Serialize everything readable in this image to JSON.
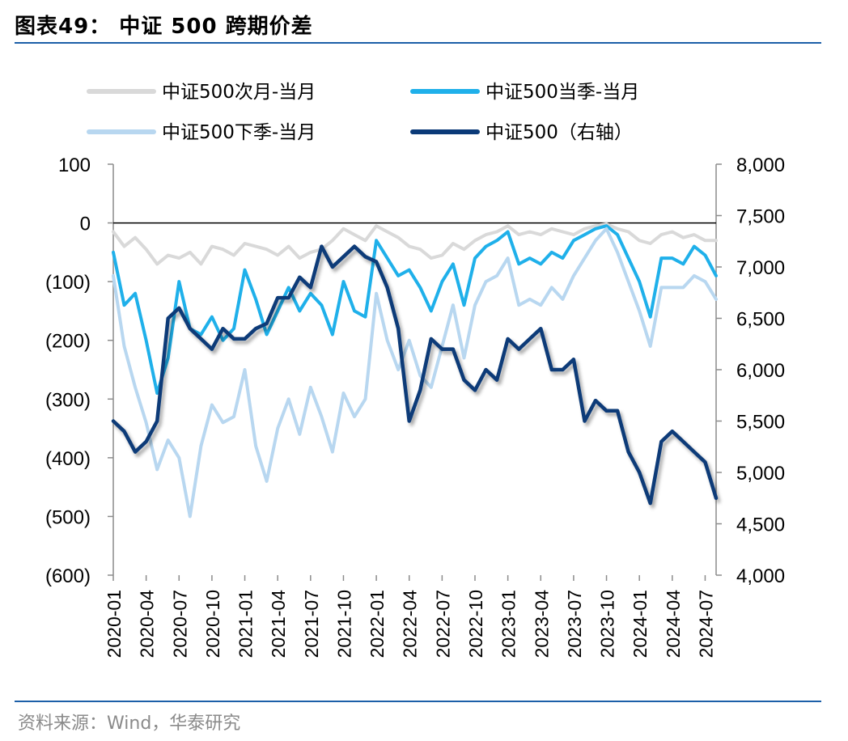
{
  "header": {
    "title": "图表49： 中证 500 跨期价差"
  },
  "footer": {
    "source": "资料来源：Wind，华泰研究"
  },
  "colors": {
    "next_month": "#d9d9d9",
    "current_quarter": "#1fb0ea",
    "next_quarter": "#b8d7f0",
    "index": "#0b3a78",
    "rule": "#1c5fa8"
  },
  "chart_data": {
    "type": "line",
    "legend": [
      {
        "label": "中证500次月-当月",
        "series": "next_month"
      },
      {
        "label": "中证500当季-当月",
        "series": "current_quarter"
      },
      {
        "label": "中证500下季-当月",
        "series": "next_quarter"
      },
      {
        "label": "中证500（右轴）",
        "series": "index"
      }
    ],
    "legend_position": "top",
    "x_ticks": [
      "2020-01",
      "2020-04",
      "2020-07",
      "2020-10",
      "2021-01",
      "2021-04",
      "2021-07",
      "2021-10",
      "2022-01",
      "2022-04",
      "2022-07",
      "2022-10",
      "2023-01",
      "2023-04",
      "2023-07",
      "2023-10",
      "2024-01",
      "2024-04",
      "2024-07"
    ],
    "x_range": [
      "2020-01",
      "2024-08"
    ],
    "y_left": {
      "ticks": [
        "100",
        "0",
        "(100)",
        "(200)",
        "(300)",
        "(400)",
        "(500)",
        "(600)"
      ],
      "range": [
        -600,
        100
      ]
    },
    "y_right": {
      "ticks": [
        "8,000",
        "7,500",
        "7,000",
        "6,500",
        "6,000",
        "5,500",
        "5,000",
        "4,500",
        "4,000"
      ],
      "range": [
        4000,
        8000
      ]
    },
    "grid": false,
    "series": [
      {
        "key": "next_month",
        "name": "中证500次月-当月",
        "axis": "left",
        "x": [
          "2020-01",
          "2020-02",
          "2020-03",
          "2020-04",
          "2020-05",
          "2020-06",
          "2020-07",
          "2020-08",
          "2020-09",
          "2020-10",
          "2020-11",
          "2020-12",
          "2021-01",
          "2021-02",
          "2021-03",
          "2021-04",
          "2021-05",
          "2021-06",
          "2021-07",
          "2021-08",
          "2021-09",
          "2021-10",
          "2021-11",
          "2021-12",
          "2022-01",
          "2022-02",
          "2022-03",
          "2022-04",
          "2022-05",
          "2022-06",
          "2022-07",
          "2022-08",
          "2022-09",
          "2022-10",
          "2022-11",
          "2022-12",
          "2023-01",
          "2023-02",
          "2023-03",
          "2023-04",
          "2023-05",
          "2023-06",
          "2023-07",
          "2023-08",
          "2023-09",
          "2023-10",
          "2023-11",
          "2023-12",
          "2024-01",
          "2024-02",
          "2024-03",
          "2024-04",
          "2024-05",
          "2024-06",
          "2024-07",
          "2024-08"
        ],
        "values": [
          -15,
          -40,
          -25,
          -45,
          -70,
          -55,
          -60,
          -50,
          -70,
          -40,
          -45,
          -55,
          -35,
          -40,
          -45,
          -55,
          -40,
          -60,
          -50,
          -45,
          -30,
          -10,
          -20,
          -30,
          -5,
          -15,
          -25,
          -40,
          -45,
          -60,
          -55,
          -35,
          -45,
          -30,
          -20,
          -15,
          -5,
          -20,
          -15,
          -20,
          -10,
          -15,
          -20,
          -10,
          -5,
          -2,
          -10,
          -15,
          -30,
          -35,
          -20,
          -15,
          -25,
          -20,
          -30,
          -30
        ]
      },
      {
        "key": "current_quarter",
        "name": "中证500当季-当月",
        "axis": "left",
        "x": [
          "2020-01",
          "2020-02",
          "2020-03",
          "2020-04",
          "2020-05",
          "2020-06",
          "2020-07",
          "2020-08",
          "2020-09",
          "2020-10",
          "2020-11",
          "2020-12",
          "2021-01",
          "2021-02",
          "2021-03",
          "2021-04",
          "2021-05",
          "2021-06",
          "2021-07",
          "2021-08",
          "2021-09",
          "2021-10",
          "2021-11",
          "2021-12",
          "2022-01",
          "2022-02",
          "2022-03",
          "2022-04",
          "2022-05",
          "2022-06",
          "2022-07",
          "2022-08",
          "2022-09",
          "2022-10",
          "2022-11",
          "2022-12",
          "2023-01",
          "2023-02",
          "2023-03",
          "2023-04",
          "2023-05",
          "2023-06",
          "2023-07",
          "2023-08",
          "2023-09",
          "2023-10",
          "2023-11",
          "2023-12",
          "2024-01",
          "2024-02",
          "2024-03",
          "2024-04",
          "2024-05",
          "2024-06",
          "2024-07",
          "2024-08"
        ],
        "values": [
          -50,
          -140,
          -120,
          -200,
          -290,
          -230,
          -100,
          -180,
          -190,
          -160,
          -200,
          -180,
          -80,
          -130,
          -190,
          -150,
          -110,
          -150,
          -120,
          -140,
          -190,
          -100,
          -150,
          -160,
          -30,
          -60,
          -90,
          -80,
          -110,
          -150,
          -100,
          -70,
          -140,
          -60,
          -40,
          -30,
          -15,
          -70,
          -60,
          -70,
          -50,
          -60,
          -30,
          -20,
          -10,
          -5,
          -20,
          -60,
          -100,
          -160,
          -60,
          -60,
          -70,
          -40,
          -55,
          -90
        ]
      },
      {
        "key": "next_quarter",
        "name": "中证500下季-当月",
        "axis": "left",
        "x": [
          "2020-01",
          "2020-02",
          "2020-03",
          "2020-04",
          "2020-05",
          "2020-06",
          "2020-07",
          "2020-08",
          "2020-09",
          "2020-10",
          "2020-11",
          "2020-12",
          "2021-01",
          "2021-02",
          "2021-03",
          "2021-04",
          "2021-05",
          "2021-06",
          "2021-07",
          "2021-08",
          "2021-09",
          "2021-10",
          "2021-11",
          "2021-12",
          "2022-01",
          "2022-02",
          "2022-03",
          "2022-04",
          "2022-05",
          "2022-06",
          "2022-07",
          "2022-08",
          "2022-09",
          "2022-10",
          "2022-11",
          "2022-12",
          "2023-01",
          "2023-02",
          "2023-03",
          "2023-04",
          "2023-05",
          "2023-06",
          "2023-07",
          "2023-08",
          "2023-09",
          "2023-10",
          "2023-11",
          "2023-12",
          "2024-01",
          "2024-02",
          "2024-03",
          "2024-04",
          "2024-05",
          "2024-06",
          "2024-07",
          "2024-08"
        ],
        "values": [
          -90,
          -210,
          -280,
          -340,
          -420,
          -370,
          -400,
          -500,
          -380,
          -310,
          -340,
          -330,
          -250,
          -380,
          -440,
          -350,
          -300,
          -360,
          -280,
          -330,
          -390,
          -290,
          -330,
          -300,
          -120,
          -200,
          -250,
          -200,
          -260,
          -280,
          -210,
          -140,
          -230,
          -140,
          -100,
          -90,
          -60,
          -140,
          -130,
          -140,
          -110,
          -130,
          -90,
          -60,
          -30,
          -10,
          -50,
          -100,
          -150,
          -210,
          -110,
          -110,
          -110,
          -90,
          -100,
          -130
        ]
      },
      {
        "key": "index",
        "name": "中证500（右轴）",
        "axis": "right",
        "x": [
          "2020-01",
          "2020-02",
          "2020-03",
          "2020-04",
          "2020-05",
          "2020-06",
          "2020-07",
          "2020-08",
          "2020-09",
          "2020-10",
          "2020-11",
          "2020-12",
          "2021-01",
          "2021-02",
          "2021-03",
          "2021-04",
          "2021-05",
          "2021-06",
          "2021-07",
          "2021-08",
          "2021-09",
          "2021-10",
          "2021-11",
          "2021-12",
          "2022-01",
          "2022-02",
          "2022-03",
          "2022-04",
          "2022-05",
          "2022-06",
          "2022-07",
          "2022-08",
          "2022-09",
          "2022-10",
          "2022-11",
          "2022-12",
          "2023-01",
          "2023-02",
          "2023-03",
          "2023-04",
          "2023-05",
          "2023-06",
          "2023-07",
          "2023-08",
          "2023-09",
          "2023-10",
          "2023-11",
          "2023-12",
          "2024-01",
          "2024-02",
          "2024-03",
          "2024-04",
          "2024-05",
          "2024-06",
          "2024-07",
          "2024-08"
        ],
        "values": [
          5500,
          5400,
          5200,
          5300,
          5500,
          6500,
          6600,
          6400,
          6300,
          6200,
          6400,
          6300,
          6300,
          6400,
          6450,
          6700,
          6700,
          6900,
          6800,
          7200,
          7000,
          7100,
          7200,
          7100,
          7050,
          6800,
          6400,
          5500,
          5800,
          6300,
          6200,
          6200,
          5900,
          5800,
          6000,
          5900,
          6300,
          6200,
          6300,
          6400,
          6000,
          6000,
          6100,
          5500,
          5700,
          5600,
          5600,
          5200,
          5000,
          4700,
          5300,
          5400,
          5300,
          5200,
          5100,
          4750
        ]
      }
    ]
  }
}
